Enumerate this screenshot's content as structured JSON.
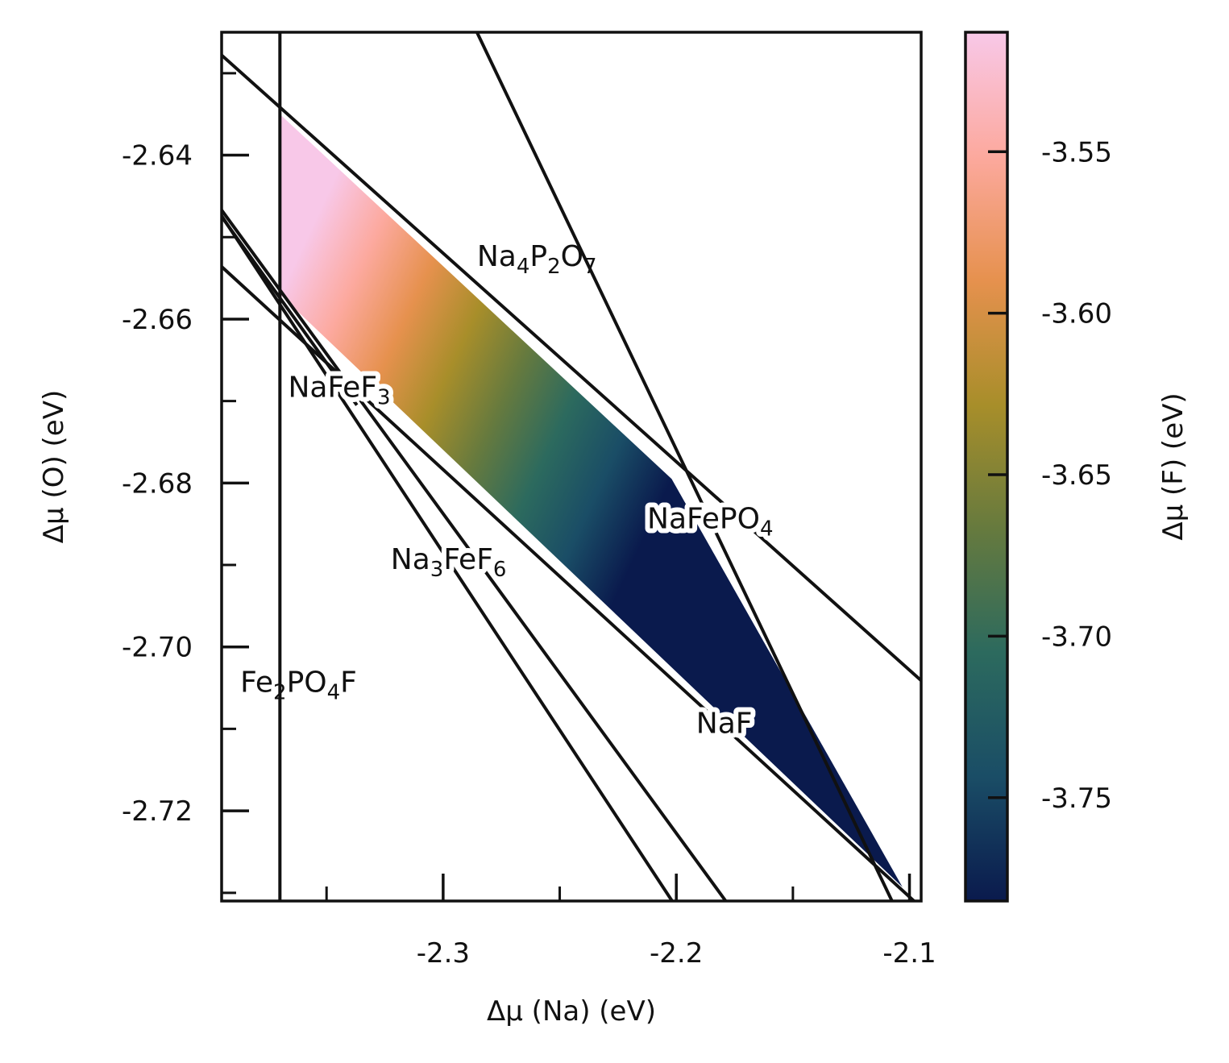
{
  "chart_data": {
    "type": "area",
    "title": "",
    "xlabel": "Δμ (Na) (eV)",
    "ylabel": "Δμ (O) (eV)",
    "xlim": [
      -2.395,
      -2.095
    ],
    "ylim": [
      -2.731,
      -2.625
    ],
    "x_ticks": [
      {
        "value": -2.3,
        "label": "-2.3"
      },
      {
        "value": -2.2,
        "label": "-2.2"
      },
      {
        "value": -2.1,
        "label": "-2.1"
      }
    ],
    "y_ticks": [
      {
        "value": -2.64,
        "label": "-2.64"
      },
      {
        "value": -2.66,
        "label": "-2.66"
      },
      {
        "value": -2.68,
        "label": "-2.68"
      },
      {
        "value": -2.7,
        "label": "-2.70"
      },
      {
        "value": -2.72,
        "label": "-2.72"
      }
    ],
    "colorbar": {
      "label": "Δμ (F) (eV)",
      "range": [
        -3.782,
        -3.513
      ],
      "ticks": [
        {
          "value": -3.55,
          "label": "-3.55"
        },
        {
          "value": -3.6,
          "label": "-3.60"
        },
        {
          "value": -3.65,
          "label": "-3.65"
        },
        {
          "value": -3.7,
          "label": "-3.70"
        },
        {
          "value": -3.75,
          "label": "-3.75"
        }
      ],
      "colors": [
        "#0a1a4d",
        "#1a4d66",
        "#2c6a5e",
        "#667a3e",
        "#a88e2a",
        "#e6914e",
        "#fca99e",
        "#f8c8e8"
      ]
    },
    "stability_region": {
      "vertices": [
        [
          -2.37,
          -2.635
        ],
        [
          -2.37,
          -2.657
        ],
        [
          -2.103,
          -2.7293
        ],
        [
          -2.202,
          -2.6795
        ]
      ],
      "high_value_corner": [
        -2.37,
        -2.657
      ],
      "low_value_corner": [
        -2.202,
        -2.6795
      ]
    },
    "boundary_lines": [
      {
        "name": "Fe2PO4F",
        "points": [
          [
            -2.37,
            -2.625
          ],
          [
            -2.37,
            -2.731
          ]
        ]
      },
      {
        "name": "NaFePO4",
        "points": [
          [
            -2.395,
            -2.6278
          ],
          [
            -2.095,
            -2.7041
          ]
        ]
      },
      {
        "name": "NaF",
        "points": [
          [
            -2.395,
            -2.6536
          ],
          [
            -2.095,
            -2.7318
          ]
        ]
      },
      {
        "name": "Na4P2O7",
        "points": [
          [
            -2.2855,
            -2.625
          ],
          [
            -2.1075,
            -2.731
          ]
        ]
      },
      {
        "name": "Na3FeF6 a",
        "points": [
          [
            -2.395,
            -2.6467
          ],
          [
            -2.1788,
            -2.731
          ]
        ]
      },
      {
        "name": "Na3FeF6 b",
        "points": [
          [
            -2.395,
            -2.6474
          ],
          [
            -2.2018,
            -2.731
          ]
        ]
      },
      {
        "name": "NaFeF3",
        "points": [
          [
            -2.395,
            -2.6475
          ],
          [
            -2.337,
            -2.6705
          ]
        ]
      }
    ],
    "annotations": [
      {
        "text": "Na",
        "sub1": "4",
        "mid1": "P",
        "sub2": "2",
        "mid2": "O",
        "sub3": "7",
        "x": -2.2855,
        "y": -2.6535,
        "halo": false
      },
      {
        "text": "NaFeF",
        "sub1": "3",
        "x": -2.3665,
        "y": -2.6695,
        "halo": true
      },
      {
        "text": "NaFePO",
        "sub1": "4",
        "x": -2.2125,
        "y": -2.6855,
        "halo": true
      },
      {
        "text": "Na",
        "sub1": "3",
        "mid1": "FeF",
        "sub2": "6",
        "x": -2.3225,
        "y": -2.6905,
        "halo": true
      },
      {
        "text": "Fe",
        "sub1": "2",
        "mid1": "PO",
        "sub2": "4",
        "mid2": "F",
        "x": -2.387,
        "y": -2.7055,
        "halo": false
      },
      {
        "text": "NaF",
        "x": -2.1915,
        "y": -2.7105,
        "halo": true
      }
    ]
  }
}
